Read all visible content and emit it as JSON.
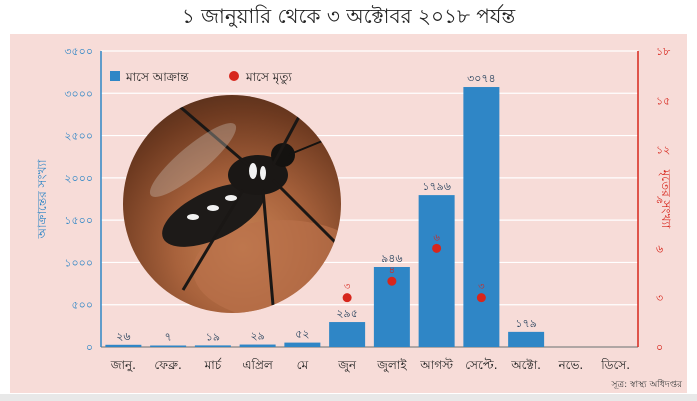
{
  "title": "১ জানুয়ারি থেকে ৩ অক্টোবর ২০১৮ পর্যন্ত",
  "source": "সূত্র: স্বাস্থ্য অধিদপ্তর",
  "colors": {
    "panel_bg": "#f7dcd8",
    "grid": "#ffffff",
    "bar": "#2f86c6",
    "dot": "#d7261c",
    "left_axis": "#2f86c6",
    "right_axis": "#d7261c"
  },
  "chart_data": {
    "type": "bar",
    "categories": [
      "জানু.",
      "ফেব্রু.",
      "মার্চ",
      "এপ্রিল",
      "মে",
      "জুন",
      "জুলাই",
      "আগস্ট",
      "সেপ্টে.",
      "অক্টো.",
      "নভে.",
      "ডিসে."
    ],
    "series": [
      {
        "name": "মাসে আক্রান্ত",
        "axis": "left",
        "values": [
          26,
          7,
          19,
          29,
          52,
          295,
          946,
          1796,
          3074,
          179,
          null,
          null
        ],
        "labels": [
          "২৬",
          "৭",
          "১৯",
          "২৯",
          "৫২",
          "২৯৫",
          "৯৪৬",
          "১৭৯৬",
          "৩০৭৪",
          "১৭৯",
          "",
          ""
        ]
      },
      {
        "name": "মাসে মৃত্যু",
        "axis": "right",
        "values": [
          null,
          null,
          null,
          null,
          null,
          3,
          4,
          6,
          3,
          null,
          null,
          null
        ],
        "labels": [
          "",
          "",
          "",
          "",
          "",
          "৩",
          "৪",
          "৬",
          "৩",
          "",
          "",
          ""
        ]
      }
    ],
    "ylabel_left": "আক্রান্তের সংখ্যা",
    "ylabel_right": "মৃতের সংখ্যা",
    "ylim_left": [
      0,
      3500
    ],
    "ylim_right": [
      0,
      18
    ],
    "yticks_left": [
      0,
      500,
      1000,
      1500,
      2000,
      2500,
      3000,
      3500
    ],
    "ytick_labels_left": [
      "০",
      "৫০০",
      "১০০০",
      "১৫০০",
      "২০০০",
      "২৫০০",
      "৩০০০",
      "৩৫০০"
    ],
    "yticks_right": [
      0,
      3,
      6,
      9,
      12,
      15,
      18
    ],
    "ytick_labels_right": [
      "০",
      "৩",
      "৬",
      "৯",
      "১২",
      "১৫",
      "১৮"
    ],
    "grid": true,
    "legend_position": "top-left"
  }
}
